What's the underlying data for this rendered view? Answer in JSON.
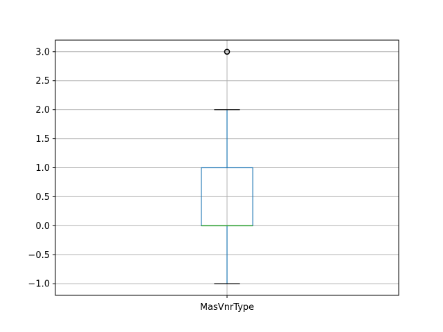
{
  "chart_data": {
    "type": "box",
    "categories": [
      "MasVnrType"
    ],
    "series": [
      {
        "box": {
          "whisker_low": -1.0,
          "q1": 0.0,
          "median": 0.0,
          "q3": 1.0,
          "whisker_high": 2.0
        },
        "outliers": [
          3.0
        ]
      }
    ],
    "ylim": [
      -1.2,
      3.2
    ],
    "yticks": [
      -1.0,
      -0.5,
      0.0,
      0.5,
      1.0,
      1.5,
      2.0,
      2.5,
      3.0
    ],
    "ytick_labels": [
      "−1.0",
      "−0.5",
      "0.0",
      "0.5",
      "1.0",
      "1.5",
      "2.0",
      "2.5",
      "3.0"
    ],
    "grid": true,
    "colors": {
      "box": "#1f77b4",
      "median": "#2ca02c",
      "whisker_cap": "#000000",
      "grid": "#b0b0b0",
      "outlier": "#000000"
    }
  }
}
